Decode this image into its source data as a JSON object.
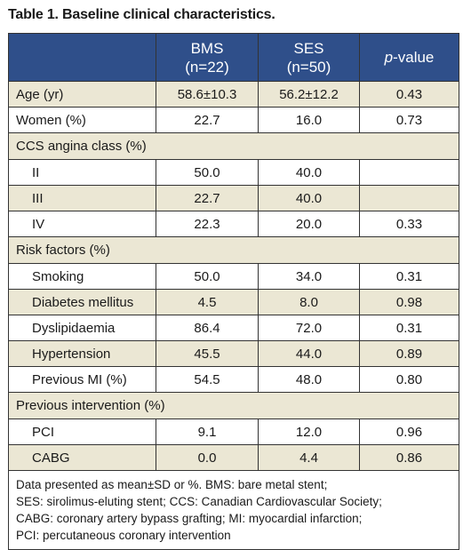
{
  "caption": "Table 1. Baseline clinical characteristics.",
  "header": {
    "col1": "",
    "bms_line1": "BMS",
    "bms_line2": "(n=22)",
    "ses_line1": "SES",
    "ses_line2": "(n=50)",
    "p_italic": "p",
    "p_rest": "-value"
  },
  "rows": [
    {
      "label": "Age (yr)",
      "bms": "58.6±10.3",
      "ses": "56.2±12.2",
      "p": "0.43"
    },
    {
      "label": "Women (%)",
      "bms": "22.7",
      "ses": "16.0",
      "p": "0.73"
    },
    {
      "label": "CCS angina class (%)"
    },
    {
      "label": "II",
      "bms": "50.0",
      "ses": "40.0",
      "p": ""
    },
    {
      "label": "III",
      "bms": "22.7",
      "ses": "40.0",
      "p": ""
    },
    {
      "label": "IV",
      "bms": "22.3",
      "ses": "20.0",
      "p": "0.33"
    },
    {
      "label": "Risk factors (%)"
    },
    {
      "label": "Smoking",
      "bms": "50.0",
      "ses": "34.0",
      "p": "0.31"
    },
    {
      "label": "Diabetes mellitus",
      "bms": "4.5",
      "ses": "8.0",
      "p": "0.98"
    },
    {
      "label": "Dyslipidaemia",
      "bms": "86.4",
      "ses": "72.0",
      "p": "0.31"
    },
    {
      "label": "Hypertension",
      "bms": "45.5",
      "ses": "44.0",
      "p": "0.89"
    },
    {
      "label": "Previous MI (%)",
      "bms": "54.5",
      "ses": "48.0",
      "p": "0.80"
    },
    {
      "label": "Previous intervention (%)"
    },
    {
      "label": "PCI",
      "bms": "9.1",
      "ses": "12.0",
      "p": "0.96"
    },
    {
      "label": "CABG",
      "bms": "0.0",
      "ses": "4.4",
      "p": "0.86"
    }
  ],
  "footnote": [
    "Data presented as mean±SD or %. BMS: bare metal stent;",
    "SES: sirolimus-eluting stent; CCS: Canadian Cardiovascular Society;",
    "CABG: coronary artery bypass grafting; MI: myocardial infarction;",
    "PCI: percutaneous coronary intervention"
  ]
}
